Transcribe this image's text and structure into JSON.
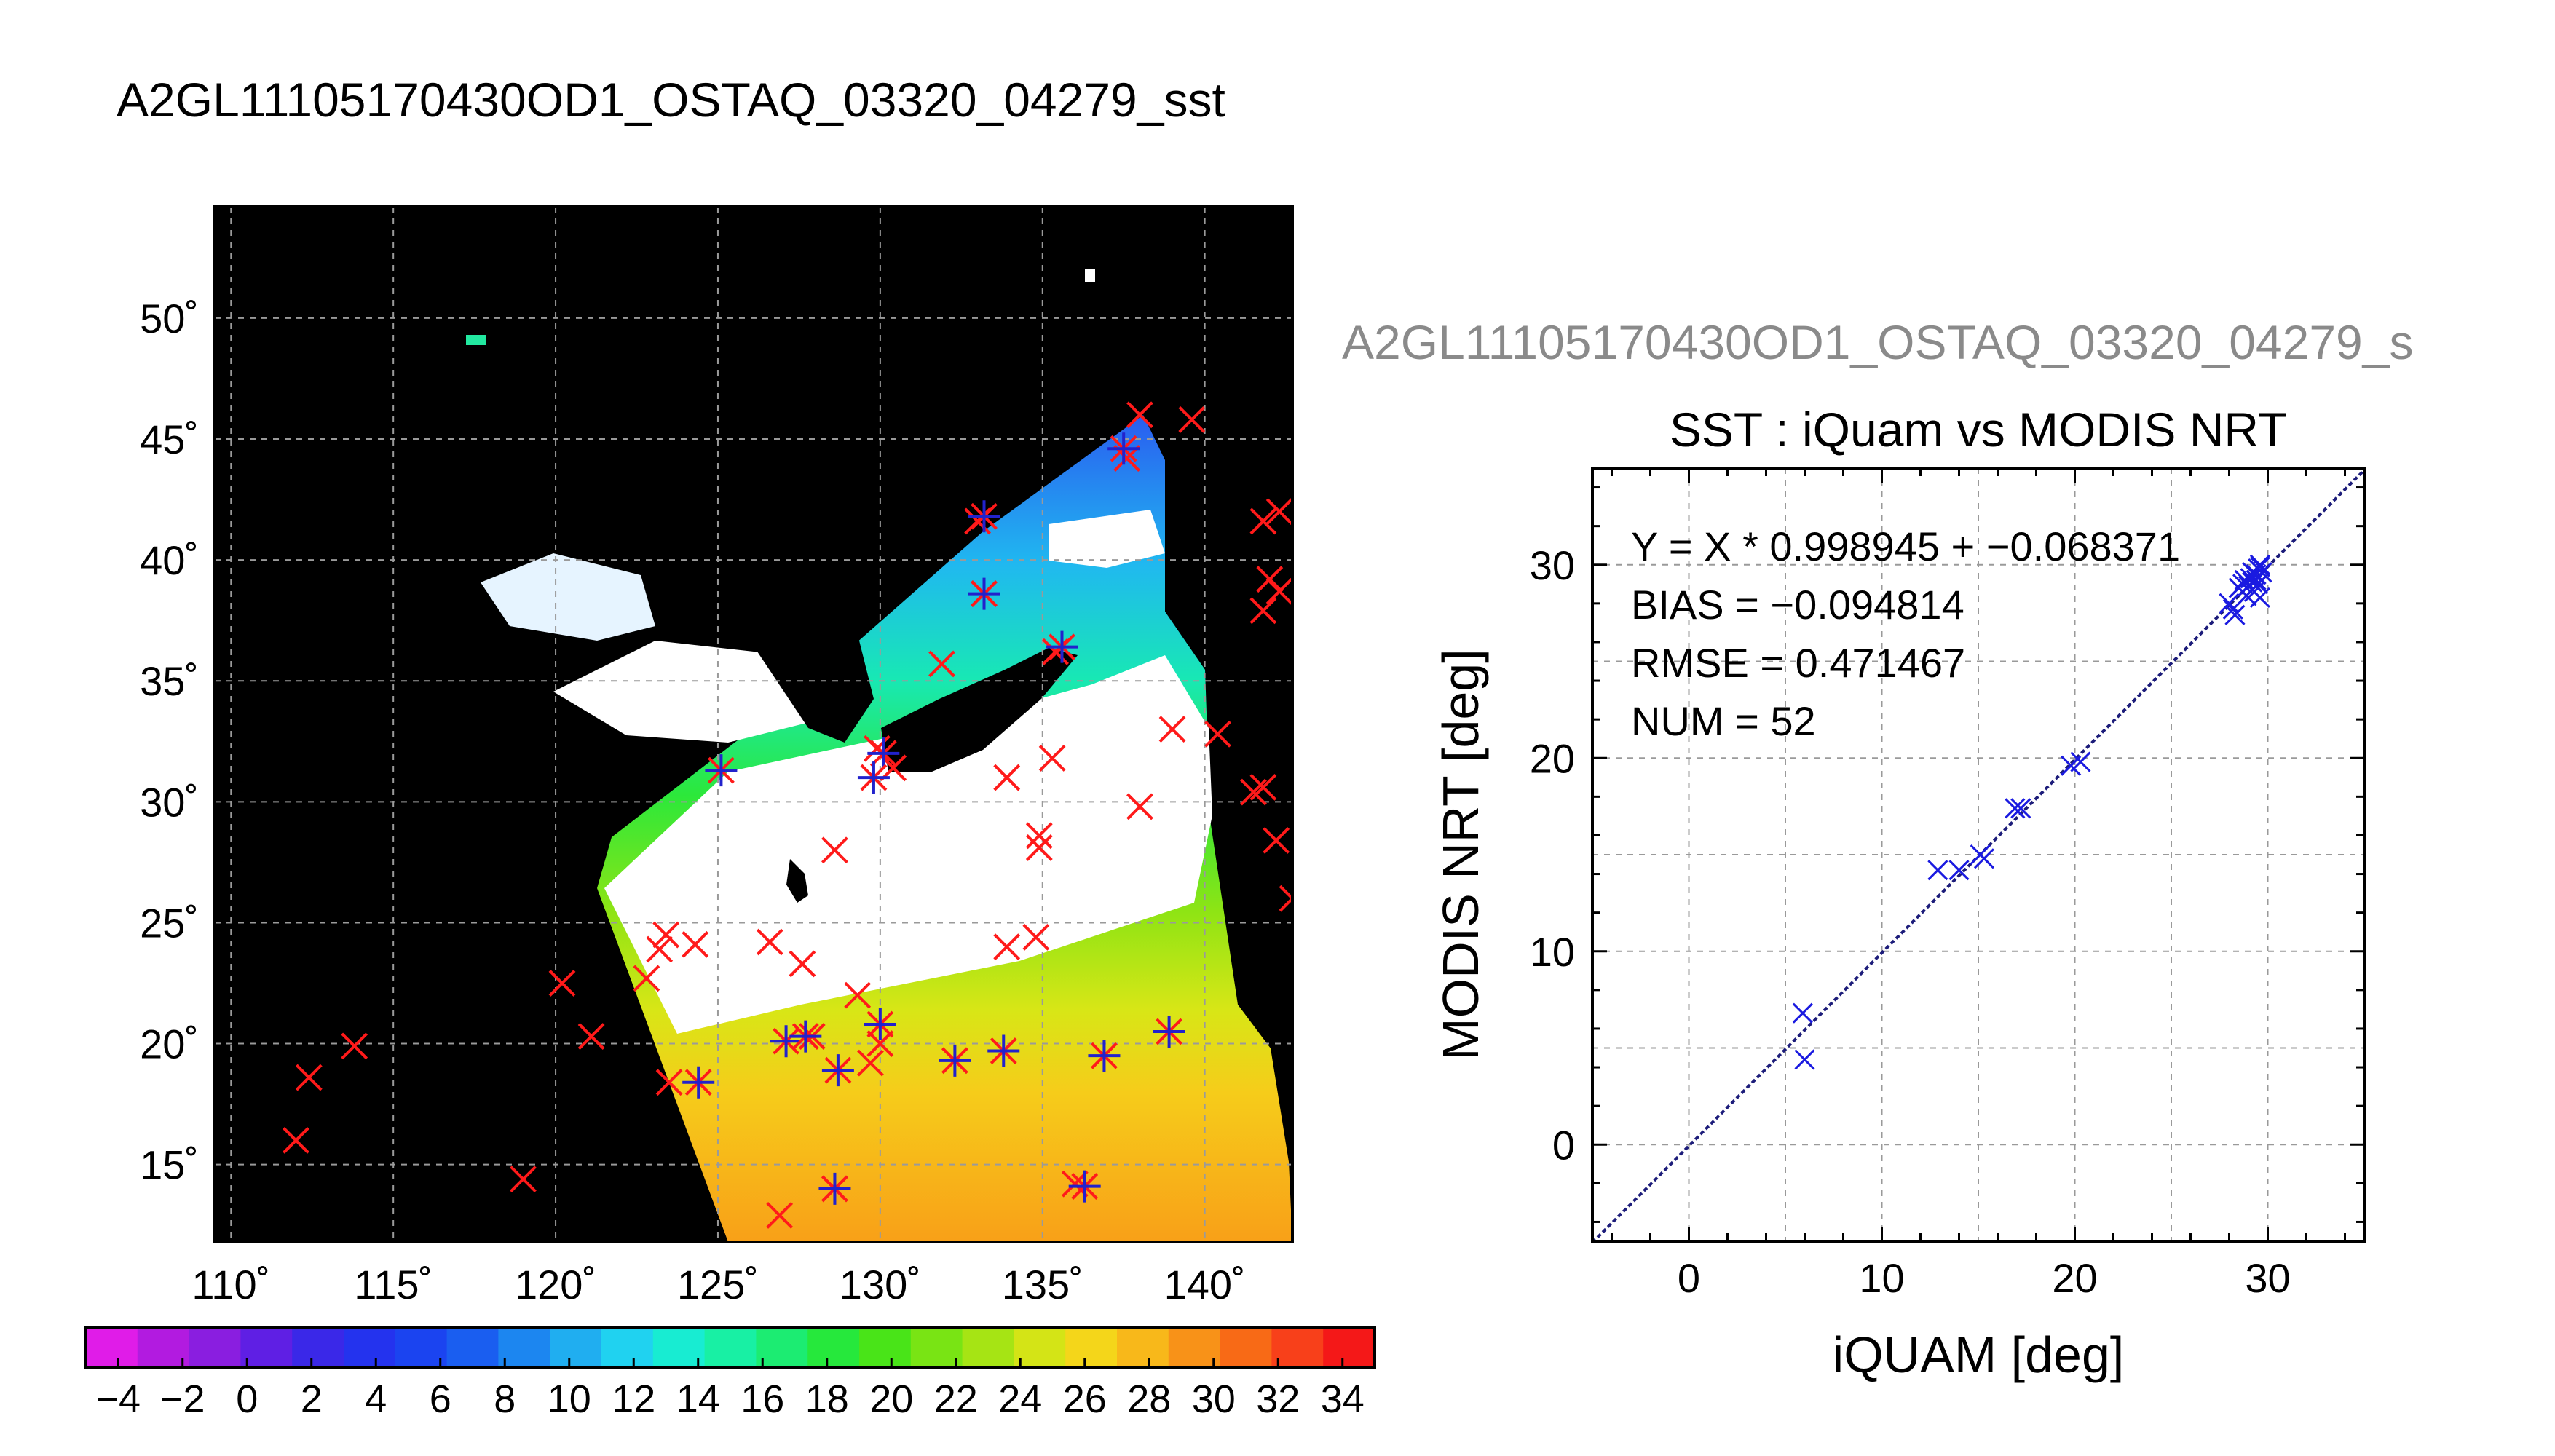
{
  "header": {
    "title": "A2GL11105170430OD1_OSTAQ_03320_04279_sst",
    "right_title": "A2GL11105170430OD1_OSTAQ_03320_04279_s"
  },
  "map": {
    "lat_labels": [
      "50˚",
      "45˚",
      "40˚",
      "35˚",
      "30˚",
      "25˚",
      "20˚",
      "15˚"
    ],
    "lon_labels": [
      "110˚",
      "115˚",
      "120˚",
      "125˚",
      "130˚",
      "135˚",
      "140˚"
    ],
    "lat_values": [
      50,
      45,
      40,
      35,
      30,
      25,
      20,
      15
    ],
    "lon_values": [
      110,
      115,
      120,
      125,
      130,
      135,
      140
    ],
    "lon_range": [
      109.5,
      142.7
    ],
    "lat_range": [
      11.8,
      54.6
    ],
    "colors": {
      "background": "#000000",
      "grid": "#9a9a9a",
      "cross_red": "#ff1a1a",
      "star_blue": "#2222cc"
    },
    "red_crosses": [
      [
        138.0,
        46.0
      ],
      [
        139.6,
        45.8
      ],
      [
        137.6,
        44.2
      ],
      [
        133.0,
        41.6
      ],
      [
        141.8,
        41.6
      ],
      [
        142.3,
        42.0
      ],
      [
        133.2,
        38.6
      ],
      [
        141.8,
        37.9
      ],
      [
        142.3,
        38.7
      ],
      [
        142.0,
        39.2
      ],
      [
        131.9,
        35.7
      ],
      [
        135.4,
        36.2
      ],
      [
        139.0,
        33.0
      ],
      [
        140.4,
        32.8
      ],
      [
        133.9,
        31.0
      ],
      [
        135.3,
        31.8
      ],
      [
        141.8,
        30.6
      ],
      [
        141.5,
        30.4
      ],
      [
        142.2,
        28.4
      ],
      [
        142.7,
        26.0
      ],
      [
        130.4,
        31.4
      ],
      [
        129.9,
        32.2
      ],
      [
        138.0,
        29.8
      ],
      [
        134.9,
        28.6
      ],
      [
        134.9,
        28.1
      ],
      [
        128.6,
        28.0
      ],
      [
        123.4,
        24.5
      ],
      [
        123.2,
        23.9
      ],
      [
        124.3,
        24.1
      ],
      [
        126.6,
        24.2
      ],
      [
        127.6,
        23.3
      ],
      [
        129.3,
        22.0
      ],
      [
        133.9,
        24.0
      ],
      [
        134.8,
        24.4
      ],
      [
        122.8,
        22.7
      ],
      [
        120.2,
        22.5
      ],
      [
        121.1,
        20.3
      ],
      [
        113.8,
        19.9
      ],
      [
        112.4,
        18.6
      ],
      [
        112.0,
        16.0
      ],
      [
        119.0,
        14.4
      ],
      [
        123.5,
        18.4
      ],
      [
        126.9,
        12.9
      ],
      [
        130.0,
        20.0
      ],
      [
        129.7,
        19.2
      ],
      [
        127.9,
        20.3
      ],
      [
        136.0,
        14.2
      ],
      [
        128.6,
        14.0
      ]
    ],
    "blue_stars": [
      [
        137.5,
        44.6
      ],
      [
        133.2,
        41.8
      ],
      [
        133.2,
        38.6
      ],
      [
        135.6,
        36.4
      ],
      [
        130.1,
        32.0
      ],
      [
        129.8,
        31.0
      ],
      [
        125.1,
        31.3
      ],
      [
        127.1,
        20.1
      ],
      [
        127.7,
        20.3
      ],
      [
        128.7,
        18.9
      ],
      [
        130.0,
        20.8
      ],
      [
        132.3,
        19.3
      ],
      [
        133.8,
        19.7
      ],
      [
        136.9,
        19.5
      ],
      [
        138.9,
        20.5
      ],
      [
        124.4,
        18.4
      ],
      [
        128.6,
        14.0
      ],
      [
        136.3,
        14.1
      ]
    ]
  },
  "colorbar": {
    "tick_labels": [
      "−4",
      "−2",
      "0",
      "2",
      "4",
      "6",
      "8",
      "10",
      "12",
      "14",
      "16",
      "18",
      "20",
      "22",
      "24",
      "26",
      "28",
      "30",
      "32",
      "34"
    ],
    "range": [
      -5,
      35
    ],
    "colors": [
      "#e01ce8",
      "#b21be0",
      "#8a1ee0",
      "#5f1fe4",
      "#3a28e8",
      "#2433ee",
      "#1b44f0",
      "#1a5ef0",
      "#1c86f0",
      "#20aef0",
      "#20d2f0",
      "#18ecd2",
      "#18f0a4",
      "#1cec72",
      "#26e83c",
      "#49e418",
      "#79e414",
      "#a6e414",
      "#d4e416",
      "#f4d61a",
      "#f8b81a",
      "#f89218",
      "#f86a16",
      "#f8401a",
      "#f41818"
    ]
  },
  "chart_data": {
    "type": "scatter",
    "title": "SST : iQuam vs MODIS NRT",
    "xlabel": "iQUAM [deg]",
    "ylabel": "MODIS NRT [deg]",
    "xlim": [
      -5,
      35
    ],
    "ylim": [
      -5,
      35
    ],
    "xticks": [
      0,
      10,
      20,
      30
    ],
    "yticks": [
      0,
      10,
      20,
      30
    ],
    "grid": true,
    "annotations": [
      "Y = X * 0.998945 + −0.068371",
      "BIAS = −0.094814",
      "RMSE = 0.471467",
      "NUM = 52"
    ],
    "fit": {
      "slope": 0.998945,
      "intercept": -0.068371
    },
    "points": [
      [
        5.9,
        6.8
      ],
      [
        6.0,
        4.4
      ],
      [
        12.9,
        14.2
      ],
      [
        14.0,
        14.2
      ],
      [
        15.1,
        15.0
      ],
      [
        15.3,
        14.8
      ],
      [
        16.9,
        17.4
      ],
      [
        17.2,
        17.4
      ],
      [
        19.8,
        19.6
      ],
      [
        20.3,
        19.8
      ],
      [
        28.0,
        28.0
      ],
      [
        28.2,
        27.7
      ],
      [
        28.3,
        27.4
      ],
      [
        28.5,
        28.8
      ],
      [
        28.7,
        29.0
      ],
      [
        28.8,
        29.2
      ],
      [
        29.0,
        28.9
      ],
      [
        29.1,
        29.3
      ],
      [
        29.2,
        29.1
      ],
      [
        29.3,
        28.6
      ],
      [
        29.4,
        29.5
      ],
      [
        29.5,
        29.8
      ],
      [
        29.5,
        29.0
      ],
      [
        29.6,
        28.3
      ],
      [
        29.6,
        29.9
      ],
      [
        29.7,
        29.6
      ],
      [
        28.9,
        28.4
      ],
      [
        29.2,
        29.6
      ],
      [
        29.4,
        29.2
      ],
      [
        29.6,
        30.0
      ]
    ]
  }
}
